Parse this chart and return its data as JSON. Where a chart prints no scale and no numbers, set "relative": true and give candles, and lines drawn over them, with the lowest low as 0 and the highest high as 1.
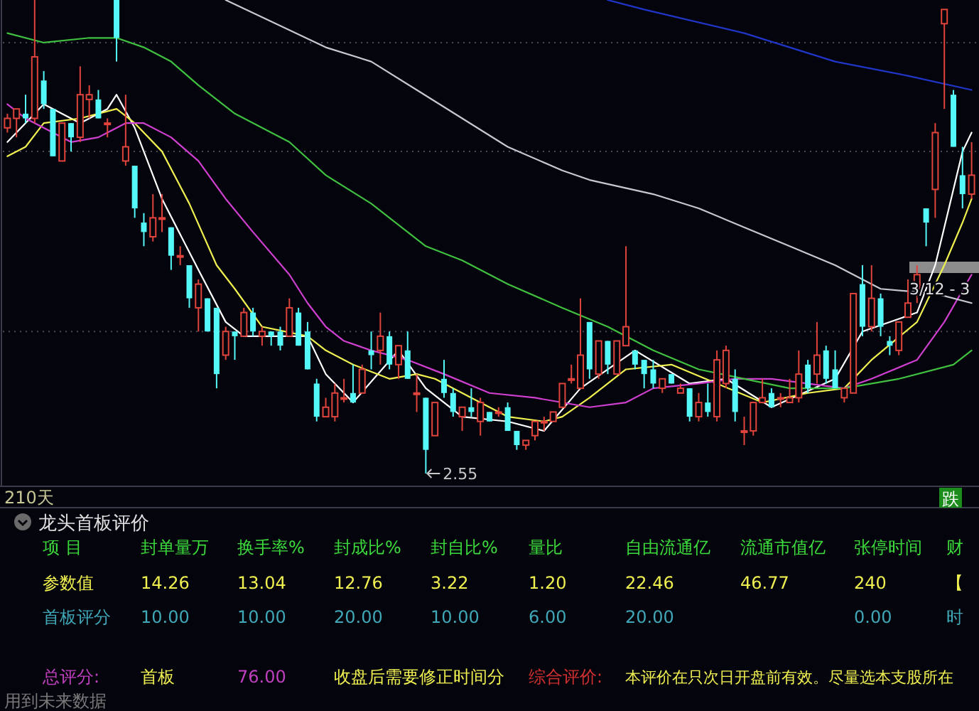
{
  "chart_data": [
    {
      "type": "candlestick",
      "relative": true,
      "categories": [
        null,
        null,
        null,
        null,
        null,
        null,
        null,
        null,
        null,
        null,
        null,
        null,
        null,
        null,
        null,
        null,
        null,
        null,
        null,
        null,
        null,
        null,
        null,
        null,
        null,
        null,
        null,
        null,
        null,
        null,
        null,
        null,
        null,
        null,
        null,
        null,
        null,
        null,
        null,
        null,
        null,
        null,
        null,
        null,
        null,
        null,
        null,
        null,
        null,
        null,
        null,
        null,
        null,
        null,
        null,
        null,
        null,
        null,
        null,
        null,
        null,
        null,
        null,
        null,
        null,
        null,
        null,
        null,
        null,
        null,
        null,
        null,
        null,
        null,
        null,
        null,
        null,
        null,
        null,
        null,
        null,
        null,
        null,
        null,
        null,
        null,
        null,
        null,
        null,
        null,
        null,
        null,
        null,
        null,
        null,
        null,
        null,
        null,
        null,
        null,
        null,
        null,
        null,
        null,
        null,
        null,
        null
      ],
      "ohlc": [
        [
          0.73,
          0.76,
          0.72,
          0.75
        ],
        [
          0.75,
          0.77,
          0.71,
          0.77
        ],
        [
          0.76,
          0.8,
          0.74,
          0.75
        ],
        [
          0.75,
          1,
          0.74,
          0.88
        ],
        [
          0.83,
          0.85,
          0.77,
          0.78
        ],
        [
          0.77,
          0.77,
          0.67,
          0.67
        ],
        [
          0.66,
          0.74,
          0.66,
          0.74
        ],
        [
          0.74,
          0.74,
          0.68,
          0.71
        ],
        [
          0.71,
          0.86,
          0.7,
          0.8
        ],
        [
          0.79,
          0.82,
          0.75,
          0.8
        ],
        [
          0.79,
          0.81,
          0.75,
          0.75
        ],
        [
          0.74,
          0.75,
          0.71,
          0.74
        ],
        [
          1,
          1,
          0.87,
          0.92
        ],
        [
          0.66,
          0.8,
          0.65,
          0.69
        ],
        [
          0.65,
          0.65,
          0.54,
          0.56
        ],
        [
          0.53,
          0.55,
          0.48,
          0.51
        ],
        [
          0.5,
          0.59,
          0.49,
          0.54
        ],
        [
          0.54,
          0.59,
          0.51,
          0.54
        ],
        [
          0.52,
          0.52,
          0.43,
          0.46
        ],
        [
          0.46,
          0.48,
          0.44,
          0.46
        ],
        [
          0.44,
          0.44,
          0.35,
          0.37
        ],
        [
          0.35,
          0.41,
          0.3,
          0.4
        ],
        [
          0.37,
          0.37,
          0.3,
          0.3
        ],
        [
          0.35,
          0.35,
          0.18,
          0.21
        ],
        [
          0.25,
          0.31,
          0.24,
          0.3
        ],
        [
          0.3,
          0.3,
          0.24,
          0.29
        ],
        [
          0.29,
          0.35,
          0.29,
          0.34
        ],
        [
          0.34,
          0.35,
          0.29,
          0.3
        ],
        [
          0.29,
          0.31,
          0.27,
          0.3
        ],
        [
          0.3,
          0.3,
          0.27,
          0.29
        ],
        [
          0.3,
          0.31,
          0.26,
          0.27
        ],
        [
          0.29,
          0.37,
          0.29,
          0.35
        ],
        [
          0.34,
          0.35,
          0.27,
          0.27
        ],
        [
          0.3,
          0.32,
          0.22,
          0.22
        ],
        [
          0.19,
          0.2,
          0.11,
          0.12
        ],
        [
          0.12,
          0.16,
          0.12,
          0.14
        ],
        [
          0.12,
          0.19,
          0.11,
          0.17
        ],
        [
          0.16,
          0.2,
          0.15,
          0.16
        ],
        [
          0.17,
          0.23,
          0.15,
          0.15
        ],
        [
          0.17,
          0.23,
          0.17,
          0.22
        ],
        [
          0.26,
          0.3,
          0.22,
          0.25
        ],
        [
          0.26,
          0.34,
          0.23,
          0.29
        ],
        [
          0.29,
          0.3,
          0.22,
          0.23
        ],
        [
          0.23,
          0.27,
          0.2,
          0.27
        ],
        [
          0.26,
          0.3,
          0.2,
          0.2
        ],
        [
          0.17,
          0.21,
          0.13,
          0.17
        ],
        [
          0.16,
          0.16,
          0,
          0.05
        ],
        [
          0.08,
          0.15,
          0.08,
          0.15
        ],
        [
          0.2,
          0.24,
          0.16,
          0.17
        ],
        [
          0.17,
          0.18,
          0.12,
          0.13
        ],
        [
          0.12,
          0.14,
          0.09,
          0.14
        ],
        [
          0.14,
          0.18,
          0.12,
          0.13
        ],
        [
          0.11,
          0.16,
          0.08,
          0.15
        ],
        [
          0.13,
          0.13,
          0.11,
          0.11
        ],
        [
          0.13,
          0.14,
          0.12,
          0.13
        ],
        [
          0.14,
          0.15,
          0.09,
          0.09
        ],
        [
          0.09,
          0.09,
          0.05,
          0.06
        ],
        [
          0.06,
          0.07,
          0.05,
          0.07
        ],
        [
          0.08,
          0.11,
          0.07,
          0.11
        ],
        [
          0.11,
          0.12,
          0.09,
          0.11
        ],
        [
          0.11,
          0.13,
          0.11,
          0.13
        ],
        [
          0.14,
          0.19,
          0.14,
          0.19
        ],
        [
          0.2,
          0.23,
          0.19,
          0.2
        ],
        [
          0.18,
          0.37,
          0.18,
          0.25
        ],
        [
          0.32,
          0.32,
          0.2,
          0.22
        ],
        [
          0.21,
          0.28,
          0.2,
          0.28
        ],
        [
          0.28,
          0.28,
          0.21,
          0.23
        ],
        [
          0.21,
          0.28,
          0.21,
          0.28
        ],
        [
          0.27,
          0.48,
          0.27,
          0.31
        ],
        [
          0.26,
          0.26,
          0.22,
          0.23
        ],
        [
          0.24,
          0.24,
          0.18,
          0.21
        ],
        [
          0.22,
          0.24,
          0.18,
          0.19
        ],
        [
          0.18,
          0.2,
          0.17,
          0.2
        ],
        [
          0.21,
          0.21,
          0.19,
          0.19
        ],
        [
          0.17,
          0.19,
          0.17,
          0.18
        ],
        [
          0.18,
          0.18,
          0.11,
          0.12
        ],
        [
          0.12,
          0.17,
          0.11,
          0.15
        ],
        [
          0.15,
          0.19,
          0.12,
          0.13
        ],
        [
          0.12,
          0.26,
          0.11,
          0.24
        ],
        [
          0.19,
          0.27,
          0.18,
          0.26
        ],
        [
          0.2,
          0.22,
          0.11,
          0.13
        ],
        [
          0.09,
          0.12,
          0.06,
          0.09
        ],
        [
          0.09,
          0.15,
          0.08,
          0.15
        ],
        [
          0.15,
          0.2,
          0.15,
          0.16
        ],
        [
          0.17,
          0.18,
          0.14,
          0.14
        ],
        [
          0.16,
          0.17,
          0.14,
          0.16
        ],
        [
          0.15,
          0.2,
          0.15,
          0.16
        ],
        [
          0.16,
          0.26,
          0.15,
          0.21
        ],
        [
          0.23,
          0.24,
          0.17,
          0.18
        ],
        [
          0.21,
          0.32,
          0.19,
          0.25
        ],
        [
          0.26,
          0.27,
          0.19,
          0.2
        ],
        [
          0.22,
          0.26,
          0.18,
          0.18
        ],
        [
          0.16,
          0.18,
          0.15,
          0.18
        ],
        [
          0.17,
          0.38,
          0.17,
          0.38
        ],
        [
          0.4,
          0.44,
          0.29,
          0.31
        ],
        [
          0.31,
          0.44,
          0.3,
          0.37
        ],
        [
          0.37,
          0.38,
          0.29,
          0.31
        ],
        [
          0.28,
          0.29,
          0.25,
          0.27
        ],
        [
          0.26,
          0.32,
          0.25,
          0.32
        ],
        [
          0.33,
          0.41,
          0.33,
          0.36
        ],
        [
          0.39,
          0.44,
          0.36,
          0.42
        ],
        [
          0.56,
          0.56,
          0.48,
          0.53
        ],
        [
          0.6,
          0.74,
          0.54,
          0.72
        ],
        [
          0.95,
          0.98,
          0.77,
          0.98
        ],
        [
          0.8,
          0.81,
          0.69,
          0.69
        ],
        [
          0.63,
          0.69,
          0.56,
          0.59
        ],
        [
          0.59,
          0.7,
          0.58,
          0.63
        ]
      ],
      "series": [
        {
          "type": "line",
          "color": "#ffffff",
          "values": [
            0.7,
            null,
            null,
            null,
            0.78,
            null,
            null,
            null,
            0.74,
            null,
            null,
            0.77,
            0.8,
            null,
            0.73,
            null,
            null,
            0.58,
            null,
            null,
            null,
            0.43,
            null,
            null,
            0.32,
            null,
            0.29,
            null,
            null,
            null,
            null,
            null,
            null,
            0.29,
            null,
            0.21,
            null,
            null,
            0.15,
            null,
            null,
            null,
            null,
            0.26,
            null,
            null,
            0.18,
            null,
            null,
            null,
            0.12,
            null,
            null,
            null,
            null,
            0.11,
            null,
            null,
            null,
            0.09,
            null,
            null,
            null,
            0.18,
            null,
            null,
            null,
            null,
            null,
            0.26,
            null,
            null,
            null,
            null,
            null,
            0.19,
            null,
            null,
            null,
            0.2,
            null,
            null,
            null,
            null,
            0.14,
            null,
            null,
            null,
            null,
            null,
            null,
            0.2,
            null,
            null,
            0.3,
            null,
            null,
            null,
            null,
            null,
            0.34,
            null,
            0.44,
            null,
            null,
            0.68,
            0.72
          ]
        },
        {
          "type": "line",
          "color": "#f0f050",
          "values": [
            0.67,
            null,
            0.69,
            null,
            0.74,
            null,
            null,
            null,
            0.75,
            null,
            null,
            null,
            0.77,
            null,
            0.74,
            null,
            null,
            0.68,
            null,
            null,
            0.57,
            null,
            null,
            0.44,
            null,
            0.39,
            null,
            null,
            0.31,
            null,
            null,
            null,
            null,
            0.29,
            null,
            0.26,
            null,
            null,
            0.23,
            null,
            null,
            null,
            0.2,
            null,
            null,
            0.21,
            null,
            0.2,
            null,
            null,
            null,
            0.16,
            null,
            null,
            null,
            0.12,
            null,
            null,
            null,
            0.11,
            null,
            0.12,
            null,
            null,
            0.16,
            null,
            null,
            null,
            0.22,
            null,
            null,
            null,
            null,
            0.23,
            null,
            null,
            null,
            null,
            0.19,
            null,
            null,
            null,
            null,
            0.15,
            null,
            null,
            null,
            null,
            0.17,
            null,
            null,
            null,
            0.18,
            null,
            null,
            0.24,
            null,
            null,
            null,
            null,
            0.32,
            null,
            null,
            0.44,
            null,
            0.53,
            0.58
          ]
        },
        {
          "type": "line",
          "color": "#d040d0",
          "values": [
            0.78,
            null,
            0.75,
            null,
            null,
            null,
            null,
            0.7,
            null,
            null,
            0.71,
            0.72,
            null,
            0.74,
            null,
            0.74,
            null,
            null,
            0.71,
            null,
            null,
            0.66,
            null,
            null,
            0.58,
            null,
            null,
            0.51,
            null,
            null,
            null,
            0.42,
            null,
            0.36,
            null,
            0.31,
            null,
            0.28,
            null,
            null,
            0.26,
            null,
            null,
            null,
            0.24,
            null,
            null,
            null,
            0.21,
            null,
            null,
            null,
            null,
            0.17,
            null,
            null,
            null,
            null,
            0.16,
            null,
            null,
            null,
            null,
            null,
            0.14,
            null,
            null,
            null,
            0.15,
            null,
            null,
            0.18,
            null,
            null,
            null,
            null,
            0.19,
            null,
            null,
            null,
            0.2,
            null,
            null,
            null,
            0.2,
            null,
            null,
            null,
            null,
            null,
            null,
            null,
            0.18,
            null,
            null,
            0.2,
            null,
            null,
            null,
            null,
            0.24,
            null,
            null,
            0.32,
            null,
            null,
            0.42
          ]
        },
        {
          "type": "line",
          "color": "#40c040",
          "values": [
            0.93,
            null,
            null,
            null,
            0.91,
            null,
            null,
            null,
            null,
            0.92,
            null,
            null,
            0.92,
            null,
            null,
            0.9,
            null,
            null,
            0.87,
            null,
            null,
            0.82,
            null,
            null,
            null,
            0.76,
            null,
            null,
            null,
            null,
            null,
            0.7,
            null,
            null,
            null,
            0.63,
            null,
            null,
            null,
            null,
            0.57,
            null,
            null,
            null,
            null,
            null,
            0.48,
            null,
            null,
            null,
            0.45,
            null,
            null,
            null,
            null,
            0.4,
            null,
            null,
            null,
            null,
            null,
            0.35,
            null,
            null,
            null,
            null,
            0.31,
            null,
            null,
            null,
            null,
            0.26,
            null,
            null,
            null,
            null,
            0.22,
            null,
            null,
            null,
            null,
            0.2,
            null,
            null,
            null,
            null,
            0.18,
            null,
            null,
            null,
            null,
            null,
            0.18,
            null,
            null,
            null,
            null,
            null,
            0.2,
            null,
            null,
            null,
            null,
            null,
            0.23,
            null,
            0.26
          ]
        },
        {
          "type": "line",
          "color": "#c8c8d2",
          "values": [
            null,
            null,
            null,
            null,
            null,
            null,
            null,
            null,
            null,
            null,
            null,
            null,
            null,
            null,
            null,
            null,
            null,
            null,
            null,
            null,
            null,
            null,
            null,
            null,
            1,
            null,
            null,
            null,
            null,
            null,
            null,
            null,
            null,
            null,
            null,
            0.9,
            null,
            null,
            null,
            null,
            0.87,
            null,
            null,
            null,
            null,
            0.81,
            null,
            null,
            null,
            null,
            0.75,
            null,
            null,
            null,
            null,
            0.69,
            null,
            null,
            null,
            null,
            null,
            0.64,
            null,
            null,
            0.62,
            null,
            null,
            null,
            null,
            null,
            null,
            0.59,
            null,
            null,
            null,
            null,
            0.56,
            null,
            null,
            null,
            null,
            0.52,
            null,
            null,
            null,
            null,
            0.48,
            null,
            null,
            null,
            null,
            0.44,
            null,
            null,
            null,
            null,
            0.39,
            null,
            null,
            null,
            null,
            null,
            0.38,
            null,
            null,
            null,
            0.36
          ]
        },
        {
          "type": "line",
          "color": "#2036c8",
          "values": [
            null,
            null,
            null,
            null,
            null,
            null,
            null,
            null,
            null,
            null,
            null,
            null,
            null,
            null,
            null,
            null,
            null,
            null,
            null,
            null,
            null,
            null,
            null,
            null,
            null,
            null,
            null,
            null,
            null,
            null,
            null,
            null,
            null,
            null,
            null,
            null,
            null,
            null,
            null,
            null,
            null,
            null,
            null,
            null,
            null,
            null,
            null,
            null,
            null,
            null,
            null,
            null,
            null,
            null,
            null,
            null,
            null,
            null,
            null,
            null,
            null,
            null,
            null,
            null,
            null,
            null,
            1,
            null,
            null,
            null,
            0.98,
            null,
            null,
            null,
            null,
            null,
            null,
            null,
            null,
            null,
            null,
            0.93,
            null,
            null,
            null,
            null,
            null,
            null,
            null,
            null,
            null,
            0.87,
            null,
            null,
            null,
            null,
            null,
            null,
            null,
            0.84,
            null,
            null,
            null,
            null,
            null,
            null,
            0.81
          ]
        }
      ],
      "ref_lines": [
        {
          "axis": "y",
          "value": 0.91,
          "color": "#4a4a5a",
          "line_style": "dotted"
        },
        {
          "axis": "y",
          "value": 0.68,
          "color": "#4a4a5a",
          "line_style": "dotted"
        },
        {
          "axis": "y",
          "value": 0.3,
          "color": "#4a4a5a",
          "line_style": "dotted"
        }
      ],
      "annotations": [
        "2.55",
        "210天",
        "跌",
        "3/12 - 3"
      ]
    },
    {
      "type": "other",
      "title": "龙头首板评价",
      "categories": [
        "封单量万",
        "换手率%",
        "封成比%",
        "封自比%",
        "量比",
        "自由流通亿",
        "流通市值亿",
        "张停时间",
        "财"
      ],
      "y_categories": [
        "参数值",
        "首板评分"
      ],
      "cell_labels": [
        [
          "14.26",
          "13.04",
          "12.76",
          "3.22",
          "1.20",
          "22.46",
          "46.77",
          "240",
          "【"
        ],
        [
          "10.00",
          "10.00",
          "20.00",
          "10.00",
          "6.00",
          "20.00",
          null,
          "0.00",
          "时"
        ]
      ],
      "annotations": [
        "项 目",
        "总评分:",
        "首板",
        "76.00",
        "收盘后需要修正时间分",
        "综合评价:",
        "本评价在只次日开盘前有效。尽量选本支股所在",
        "用到未来数据"
      ]
    }
  ]
}
